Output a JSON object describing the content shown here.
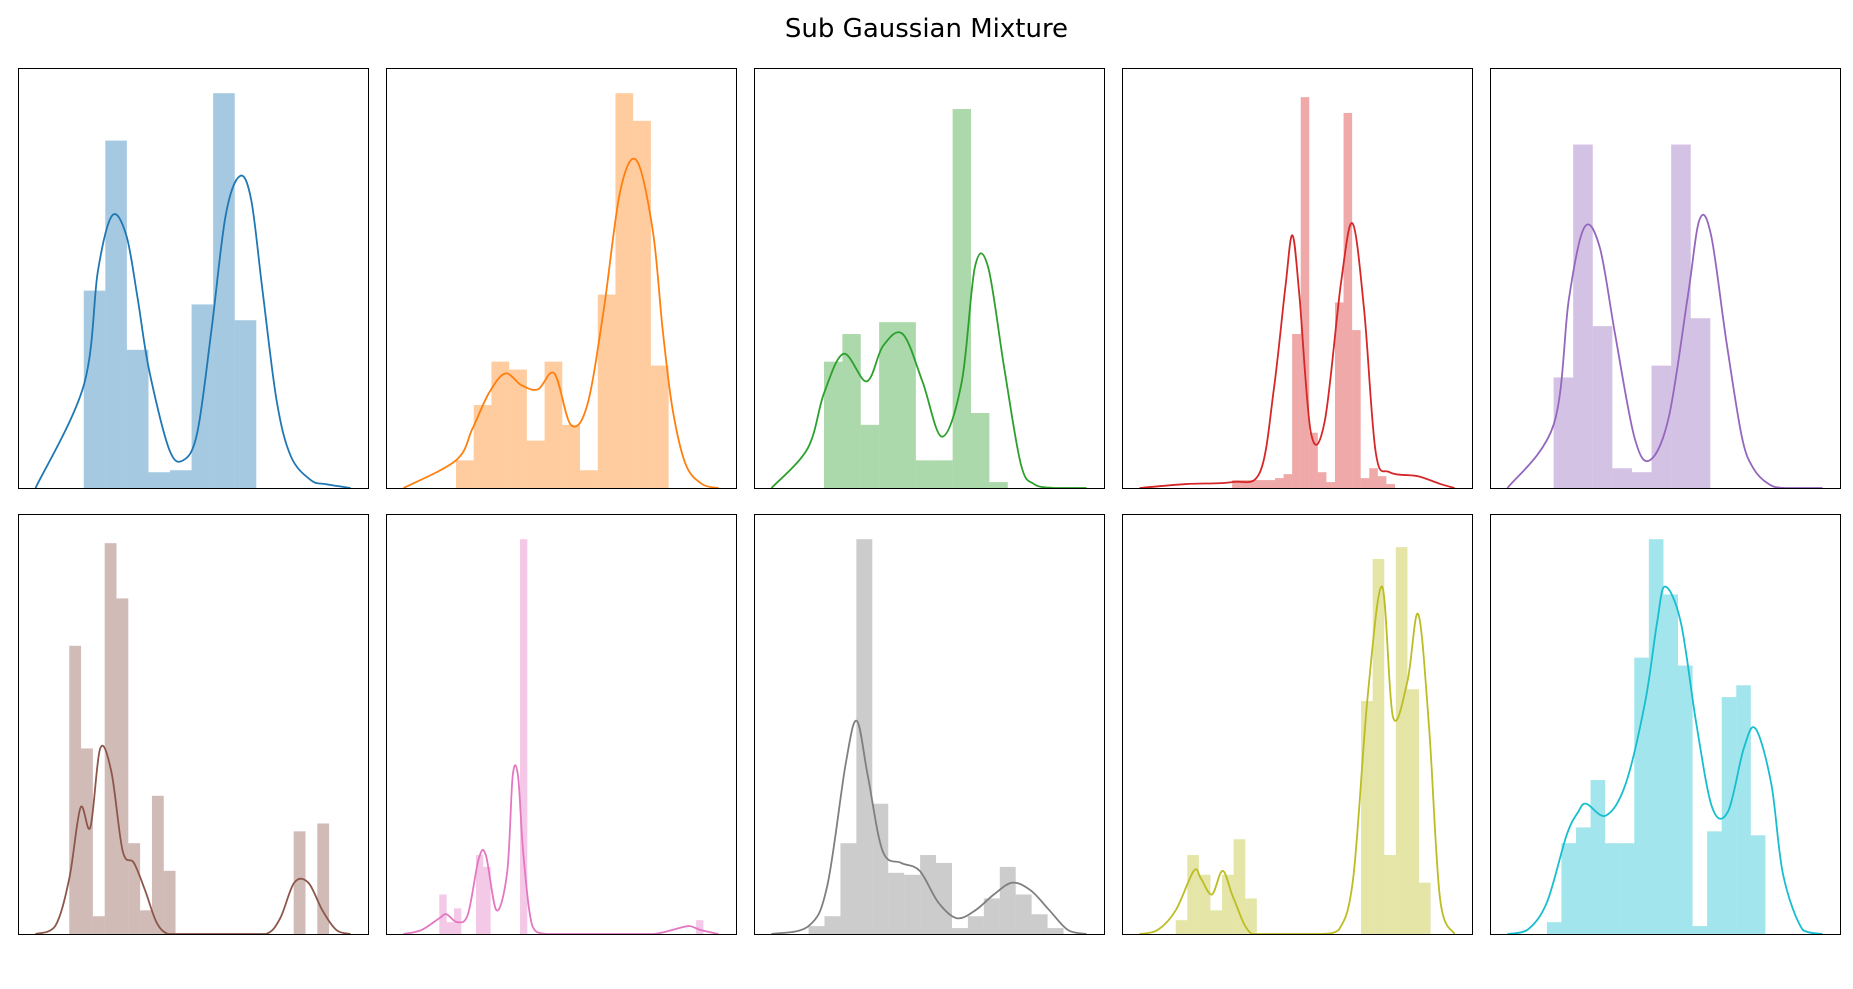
{
  "figure": {
    "title": "Sub Gaussian Mixture"
  },
  "chart_data": [
    {
      "type": "histogram",
      "color": "#1f77b4",
      "grid": false,
      "xticks": false,
      "yticks": false,
      "hist": {
        "xmin": 0.0,
        "bin_width": 0.076,
        "heights": [
          0.5,
          0.88,
          0.35,
          0.04,
          0.045,
          0.465,
          1.0,
          0.425
        ]
      },
      "kde": {
        "x": [
          -0.17,
          0.0,
          0.05,
          0.1,
          0.15,
          0.19,
          0.23,
          0.3,
          0.35,
          0.4,
          0.45,
          0.5,
          0.55,
          0.59,
          0.63,
          0.68,
          0.73,
          0.8,
          0.85,
          0.94
        ],
        "y": [
          0.0,
          0.26,
          0.55,
          0.69,
          0.64,
          0.48,
          0.3,
          0.1,
          0.07,
          0.14,
          0.4,
          0.69,
          0.79,
          0.73,
          0.5,
          0.22,
          0.08,
          0.02,
          0.01,
          0.0
        ]
      }
    },
    {
      "type": "histogram",
      "color": "#ff7f0e",
      "grid": false,
      "xticks": false,
      "yticks": false,
      "hist": {
        "xmin": 0.0,
        "bin_width": 0.054,
        "heights": [
          0.07,
          0.21,
          0.32,
          0.3,
          0.12,
          0.32,
          0.16,
          0.045,
          0.49,
          1.0,
          0.93,
          0.31
        ]
      },
      "kde": {
        "x": [
          -0.16,
          0.0,
          0.05,
          0.1,
          0.15,
          0.2,
          0.25,
          0.3,
          0.35,
          0.4,
          0.45,
          0.5,
          0.55,
          0.6,
          0.63,
          0.66,
          0.7,
          0.75,
          0.8
        ],
        "y": [
          0.0,
          0.07,
          0.15,
          0.24,
          0.29,
          0.26,
          0.25,
          0.29,
          0.16,
          0.21,
          0.45,
          0.75,
          0.83,
          0.65,
          0.4,
          0.2,
          0.06,
          0.01,
          0.0
        ]
      }
    },
    {
      "type": "histogram",
      "color": "#2ca02c",
      "grid": false,
      "xticks": false,
      "yticks": false,
      "hist": {
        "xmin": 0.0,
        "bin_width": 0.056,
        "heights": [
          0.32,
          0.39,
          0.16,
          0.42,
          0.42,
          0.07,
          0.07,
          0.96,
          0.19,
          0.015
        ]
      },
      "kde": {
        "x": [
          -0.16,
          -0.05,
          0.0,
          0.06,
          0.13,
          0.18,
          0.24,
          0.3,
          0.36,
          0.42,
          0.46,
          0.5,
          0.55,
          0.6,
          0.64,
          0.7,
          0.75,
          0.8
        ],
        "y": [
          0.0,
          0.1,
          0.24,
          0.34,
          0.27,
          0.36,
          0.39,
          0.27,
          0.13,
          0.27,
          0.56,
          0.56,
          0.3,
          0.06,
          0.01,
          0.0,
          0.0,
          0.0
        ]
      }
    },
    {
      "type": "histogram",
      "color": "#d62728",
      "grid": false,
      "xticks": false,
      "yticks": false,
      "hist": {
        "xmin": 0.0,
        "bin_width": 0.0185,
        "heights": [
          0.02,
          0.02,
          0.02,
          0.02,
          0.02,
          0.025,
          0.035,
          0.39,
          0.99,
          0.14,
          0.04,
          0.015,
          0.47,
          0.95,
          0.4,
          0.025,
          0.05,
          0.03,
          0.01
        ]
      },
      "kde": {
        "x": [
          -0.2,
          -0.1,
          0.0,
          0.06,
          0.09,
          0.115,
          0.13,
          0.145,
          0.17,
          0.2,
          0.235,
          0.26,
          0.285,
          0.31,
          0.34,
          0.4,
          0.45,
          0.48
        ],
        "y": [
          0.0,
          0.01,
          0.015,
          0.04,
          0.25,
          0.51,
          0.64,
          0.49,
          0.14,
          0.17,
          0.52,
          0.67,
          0.45,
          0.09,
          0.04,
          0.03,
          0.01,
          0.0
        ]
      }
    },
    {
      "type": "histogram",
      "color": "#9467bd",
      "grid": false,
      "xticks": false,
      "yticks": false,
      "hist": {
        "xmin": 0.0,
        "bin_width": 0.051,
        "heights": [
          0.28,
          0.87,
          0.41,
          0.05,
          0.04,
          0.31,
          0.87,
          0.43
        ]
      },
      "kde": {
        "x": [
          -0.12,
          0.0,
          0.04,
          0.08,
          0.12,
          0.16,
          0.21,
          0.25,
          0.3,
          0.35,
          0.38,
          0.41,
          0.45,
          0.49,
          0.52,
          0.56,
          0.6,
          0.7
        ],
        "y": [
          0.0,
          0.16,
          0.48,
          0.66,
          0.61,
          0.39,
          0.13,
          0.07,
          0.18,
          0.49,
          0.68,
          0.64,
          0.37,
          0.13,
          0.05,
          0.01,
          0.0,
          0.0
        ]
      }
    },
    {
      "type": "histogram",
      "color": "#8c564b",
      "grid": false,
      "xticks": false,
      "yticks": false,
      "hist": {
        "xmin": 0.0,
        "bin_width": 0.042,
        "heights": [
          0.73,
          0.47,
          0.045,
          0.99,
          0.85,
          0.23,
          0.06,
          0.35,
          0.16,
          0.0,
          0.0,
          0.0,
          0.0,
          0.0,
          0.0,
          0.0,
          0.0,
          0.0,
          0.0,
          0.26,
          0.0,
          0.28
        ]
      },
      "kde": {
        "x": [
          -0.12,
          -0.05,
          0.0,
          0.04,
          0.075,
          0.11,
          0.15,
          0.19,
          0.23,
          0.27,
          0.31,
          0.35,
          0.4,
          0.5,
          0.6,
          0.7,
          0.75,
          0.8,
          0.85,
          0.9,
          0.95,
          1.0
        ],
        "y": [
          0.0,
          0.02,
          0.14,
          0.32,
          0.27,
          0.47,
          0.41,
          0.21,
          0.18,
          0.11,
          0.03,
          0.0,
          0.0,
          0.0,
          0.0,
          0.0,
          0.04,
          0.13,
          0.13,
          0.06,
          0.01,
          0.0
        ]
      }
    },
    {
      "type": "histogram",
      "color": "#e377c2",
      "grid": false,
      "xticks": false,
      "yticks": false,
      "hist": {
        "xmin": 0.0,
        "bin_width": 0.0205,
        "heights": [
          0.1,
          0.03,
          0.065,
          0.0,
          0.0,
          0.2,
          0.17,
          0.0,
          0.0,
          0.0,
          0.0,
          1.0,
          0.0,
          0.0,
          0.0,
          0.0,
          0.0,
          0.0,
          0.0,
          0.0,
          0.0,
          0.0,
          0.0,
          0.0,
          0.0,
          0.0,
          0.0,
          0.0,
          0.0,
          0.0,
          0.0,
          0.0,
          0.0,
          0.0,
          0.0,
          0.035
        ]
      },
      "kde": {
        "x": [
          -0.1,
          -0.05,
          0.0,
          0.02,
          0.05,
          0.08,
          0.11,
          0.13,
          0.16,
          0.19,
          0.205,
          0.22,
          0.235,
          0.26,
          0.3,
          0.4,
          0.5,
          0.6,
          0.67,
          0.7,
          0.73,
          0.78
        ],
        "y": [
          0.0,
          0.01,
          0.04,
          0.05,
          0.03,
          0.05,
          0.19,
          0.2,
          0.06,
          0.16,
          0.4,
          0.4,
          0.2,
          0.02,
          0.0,
          0.0,
          0.0,
          0.0,
          0.015,
          0.02,
          0.01,
          0.0
        ]
      }
    },
    {
      "type": "histogram",
      "color": "#7f7f7f",
      "grid": false,
      "xticks": false,
      "yticks": false,
      "hist": {
        "xmin": 0.0,
        "bin_width": 0.043,
        "heights": [
          0.02,
          0.045,
          0.23,
          1.0,
          0.33,
          0.155,
          0.15,
          0.2,
          0.18,
          0.015,
          0.045,
          0.09,
          0.17,
          0.1,
          0.05,
          0.015
        ]
      },
      "kde": {
        "x": [
          -0.1,
          0.0,
          0.05,
          0.1,
          0.13,
          0.16,
          0.2,
          0.25,
          0.3,
          0.35,
          0.4,
          0.45,
          0.5,
          0.55,
          0.6,
          0.65,
          0.7,
          0.75
        ],
        "y": [
          0.0,
          0.02,
          0.12,
          0.43,
          0.54,
          0.4,
          0.21,
          0.18,
          0.16,
          0.08,
          0.04,
          0.06,
          0.1,
          0.13,
          0.11,
          0.06,
          0.01,
          0.0
        ]
      }
    },
    {
      "type": "histogram",
      "color": "#bcbd22",
      "grid": false,
      "xticks": false,
      "yticks": false,
      "hist": {
        "xmin": 0.0,
        "bin_width": 0.032,
        "heights": [
          0.035,
          0.2,
          0.15,
          0.06,
          0.15,
          0.24,
          0.09,
          0.0,
          0.0,
          0.0,
          0.0,
          0.0,
          0.0,
          0.0,
          0.0,
          0.0,
          0.59,
          0.95,
          0.2,
          0.98,
          0.62,
          0.13
        ]
      },
      "kde": {
        "x": [
          -0.1,
          -0.05,
          0.0,
          0.05,
          0.07,
          0.1,
          0.13,
          0.16,
          0.21,
          0.3,
          0.4,
          0.45,
          0.49,
          0.53,
          0.57,
          0.6,
          0.64,
          0.67,
          0.7,
          0.73,
          0.77
        ],
        "y": [
          0.0,
          0.01,
          0.06,
          0.16,
          0.14,
          0.1,
          0.16,
          0.09,
          0.0,
          0.0,
          0.0,
          0.01,
          0.14,
          0.6,
          0.88,
          0.55,
          0.64,
          0.81,
          0.52,
          0.09,
          0.0
        ]
      }
    },
    {
      "type": "histogram",
      "color": "#17becf",
      "grid": false,
      "xticks": false,
      "yticks": false,
      "hist": {
        "xmin": 0.0,
        "bin_width": 0.037,
        "heights": [
          0.03,
          0.23,
          0.27,
          0.39,
          0.23,
          0.23,
          0.7,
          1.0,
          0.86,
          0.68,
          0.02,
          0.26,
          0.6,
          0.63,
          0.25
        ]
      },
      "kde": {
        "x": [
          -0.1,
          -0.05,
          0.0,
          0.05,
          0.08,
          0.1,
          0.15,
          0.2,
          0.25,
          0.28,
          0.3,
          0.34,
          0.38,
          0.42,
          0.46,
          0.5,
          0.53,
          0.57,
          0.6,
          0.65,
          0.7
        ],
        "y": [
          0.0,
          0.01,
          0.08,
          0.25,
          0.31,
          0.33,
          0.3,
          0.38,
          0.59,
          0.79,
          0.88,
          0.79,
          0.53,
          0.32,
          0.31,
          0.47,
          0.52,
          0.38,
          0.15,
          0.01,
          0.0
        ]
      }
    }
  ]
}
